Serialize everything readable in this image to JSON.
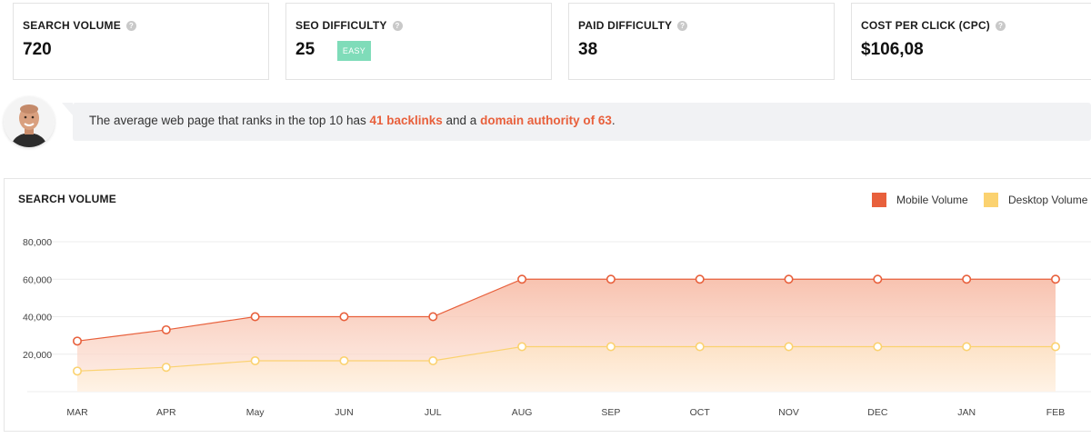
{
  "metrics": [
    {
      "label": "SEARCH VOLUME",
      "value": "720"
    },
    {
      "label": "SEO DIFFICULTY",
      "value": "25",
      "badge": "EASY"
    },
    {
      "label": "PAID DIFFICULTY",
      "value": "38"
    },
    {
      "label": "COST PER CLICK (CPC)",
      "value": "$106,08"
    }
  ],
  "help_icon": "question-mark-icon",
  "tip": {
    "prefix": "The average web page that ranks in the top 10 has ",
    "backlinks": "41 backlinks",
    "middle": " and a ",
    "authority": "domain authority of 63",
    "suffix": "."
  },
  "colors": {
    "accent": "#e8603c",
    "mobile": "#e8603c",
    "desktop": "#fbd270",
    "easy_badge": "#7fdcb9"
  },
  "chart_data": {
    "type": "area",
    "title": "SEARCH VOLUME",
    "categories": [
      "MAR",
      "APR",
      "May",
      "JUN",
      "JUL",
      "AUG",
      "SEP",
      "OCT",
      "NOV",
      "DEC",
      "JAN",
      "FEB"
    ],
    "y_ticks": [
      "80,000",
      "60,000",
      "40,000",
      "20,000"
    ],
    "ylim": [
      0,
      80000
    ],
    "grid": true,
    "legend_position": "top-right",
    "series": [
      {
        "name": "Mobile Volume",
        "color": "#e8603c",
        "values": [
          27000,
          33000,
          40000,
          40000,
          40000,
          60000,
          60000,
          60000,
          60000,
          60000,
          60000,
          60000
        ]
      },
      {
        "name": "Desktop Volume",
        "color": "#fbd270",
        "values": [
          11000,
          13000,
          16500,
          16500,
          16500,
          24000,
          24000,
          24000,
          24000,
          24000,
          24000,
          24000
        ]
      }
    ]
  }
}
